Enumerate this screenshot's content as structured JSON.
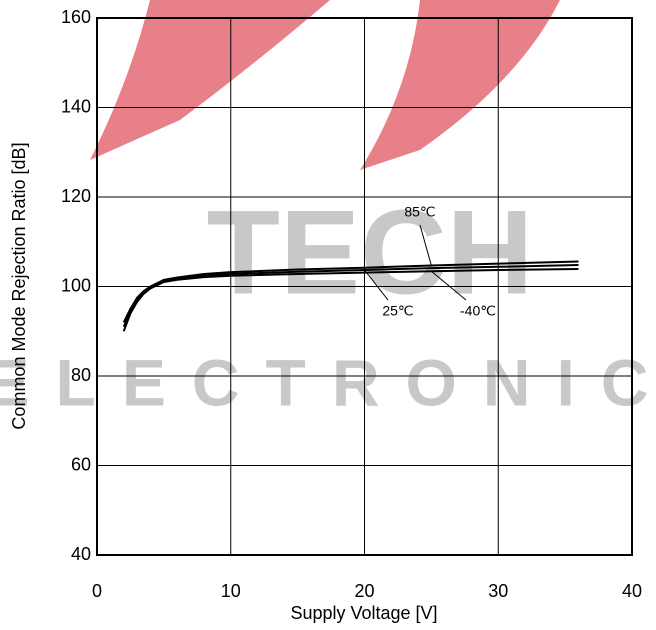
{
  "chart_data": {
    "type": "line",
    "x_label": "Supply Voltage [V]",
    "y_label": "Common Mode Rejection Ratio [dB]",
    "x": [
      2,
      2.5,
      3,
      3.5,
      4,
      5,
      6,
      8,
      10,
      15,
      20,
      25,
      30,
      36
    ],
    "series": [
      {
        "name": "85℃",
        "color": "#000000",
        "values": [
          92,
          95,
          97.5,
          99,
          100,
          101.5,
          102,
          102.8,
          103.2,
          103.8,
          104.2,
          104.7,
          105.1,
          105.6
        ]
      },
      {
        "name": "25℃",
        "color": "#000000",
        "values": [
          91,
          94.5,
          97,
          98.7,
          99.8,
          101.2,
          101.7,
          102.4,
          102.8,
          103.3,
          103.7,
          104.1,
          104.4,
          104.8
        ]
      },
      {
        "name": "-40℃",
        "color": "#000000",
        "values": [
          90,
          94,
          96.6,
          98.4,
          99.6,
          101,
          101.5,
          102.1,
          102.4,
          102.8,
          103.1,
          103.4,
          103.7,
          103.9
        ]
      }
    ],
    "xlim": [
      0,
      40
    ],
    "xticks": [
      0,
      10,
      20,
      30,
      40
    ],
    "ylim": [
      40,
      160
    ],
    "yticks": [
      40,
      60,
      80,
      100,
      120,
      140,
      160
    ],
    "grid": true,
    "watermark": [
      "TECH",
      "ELECTRONIC"
    ]
  }
}
